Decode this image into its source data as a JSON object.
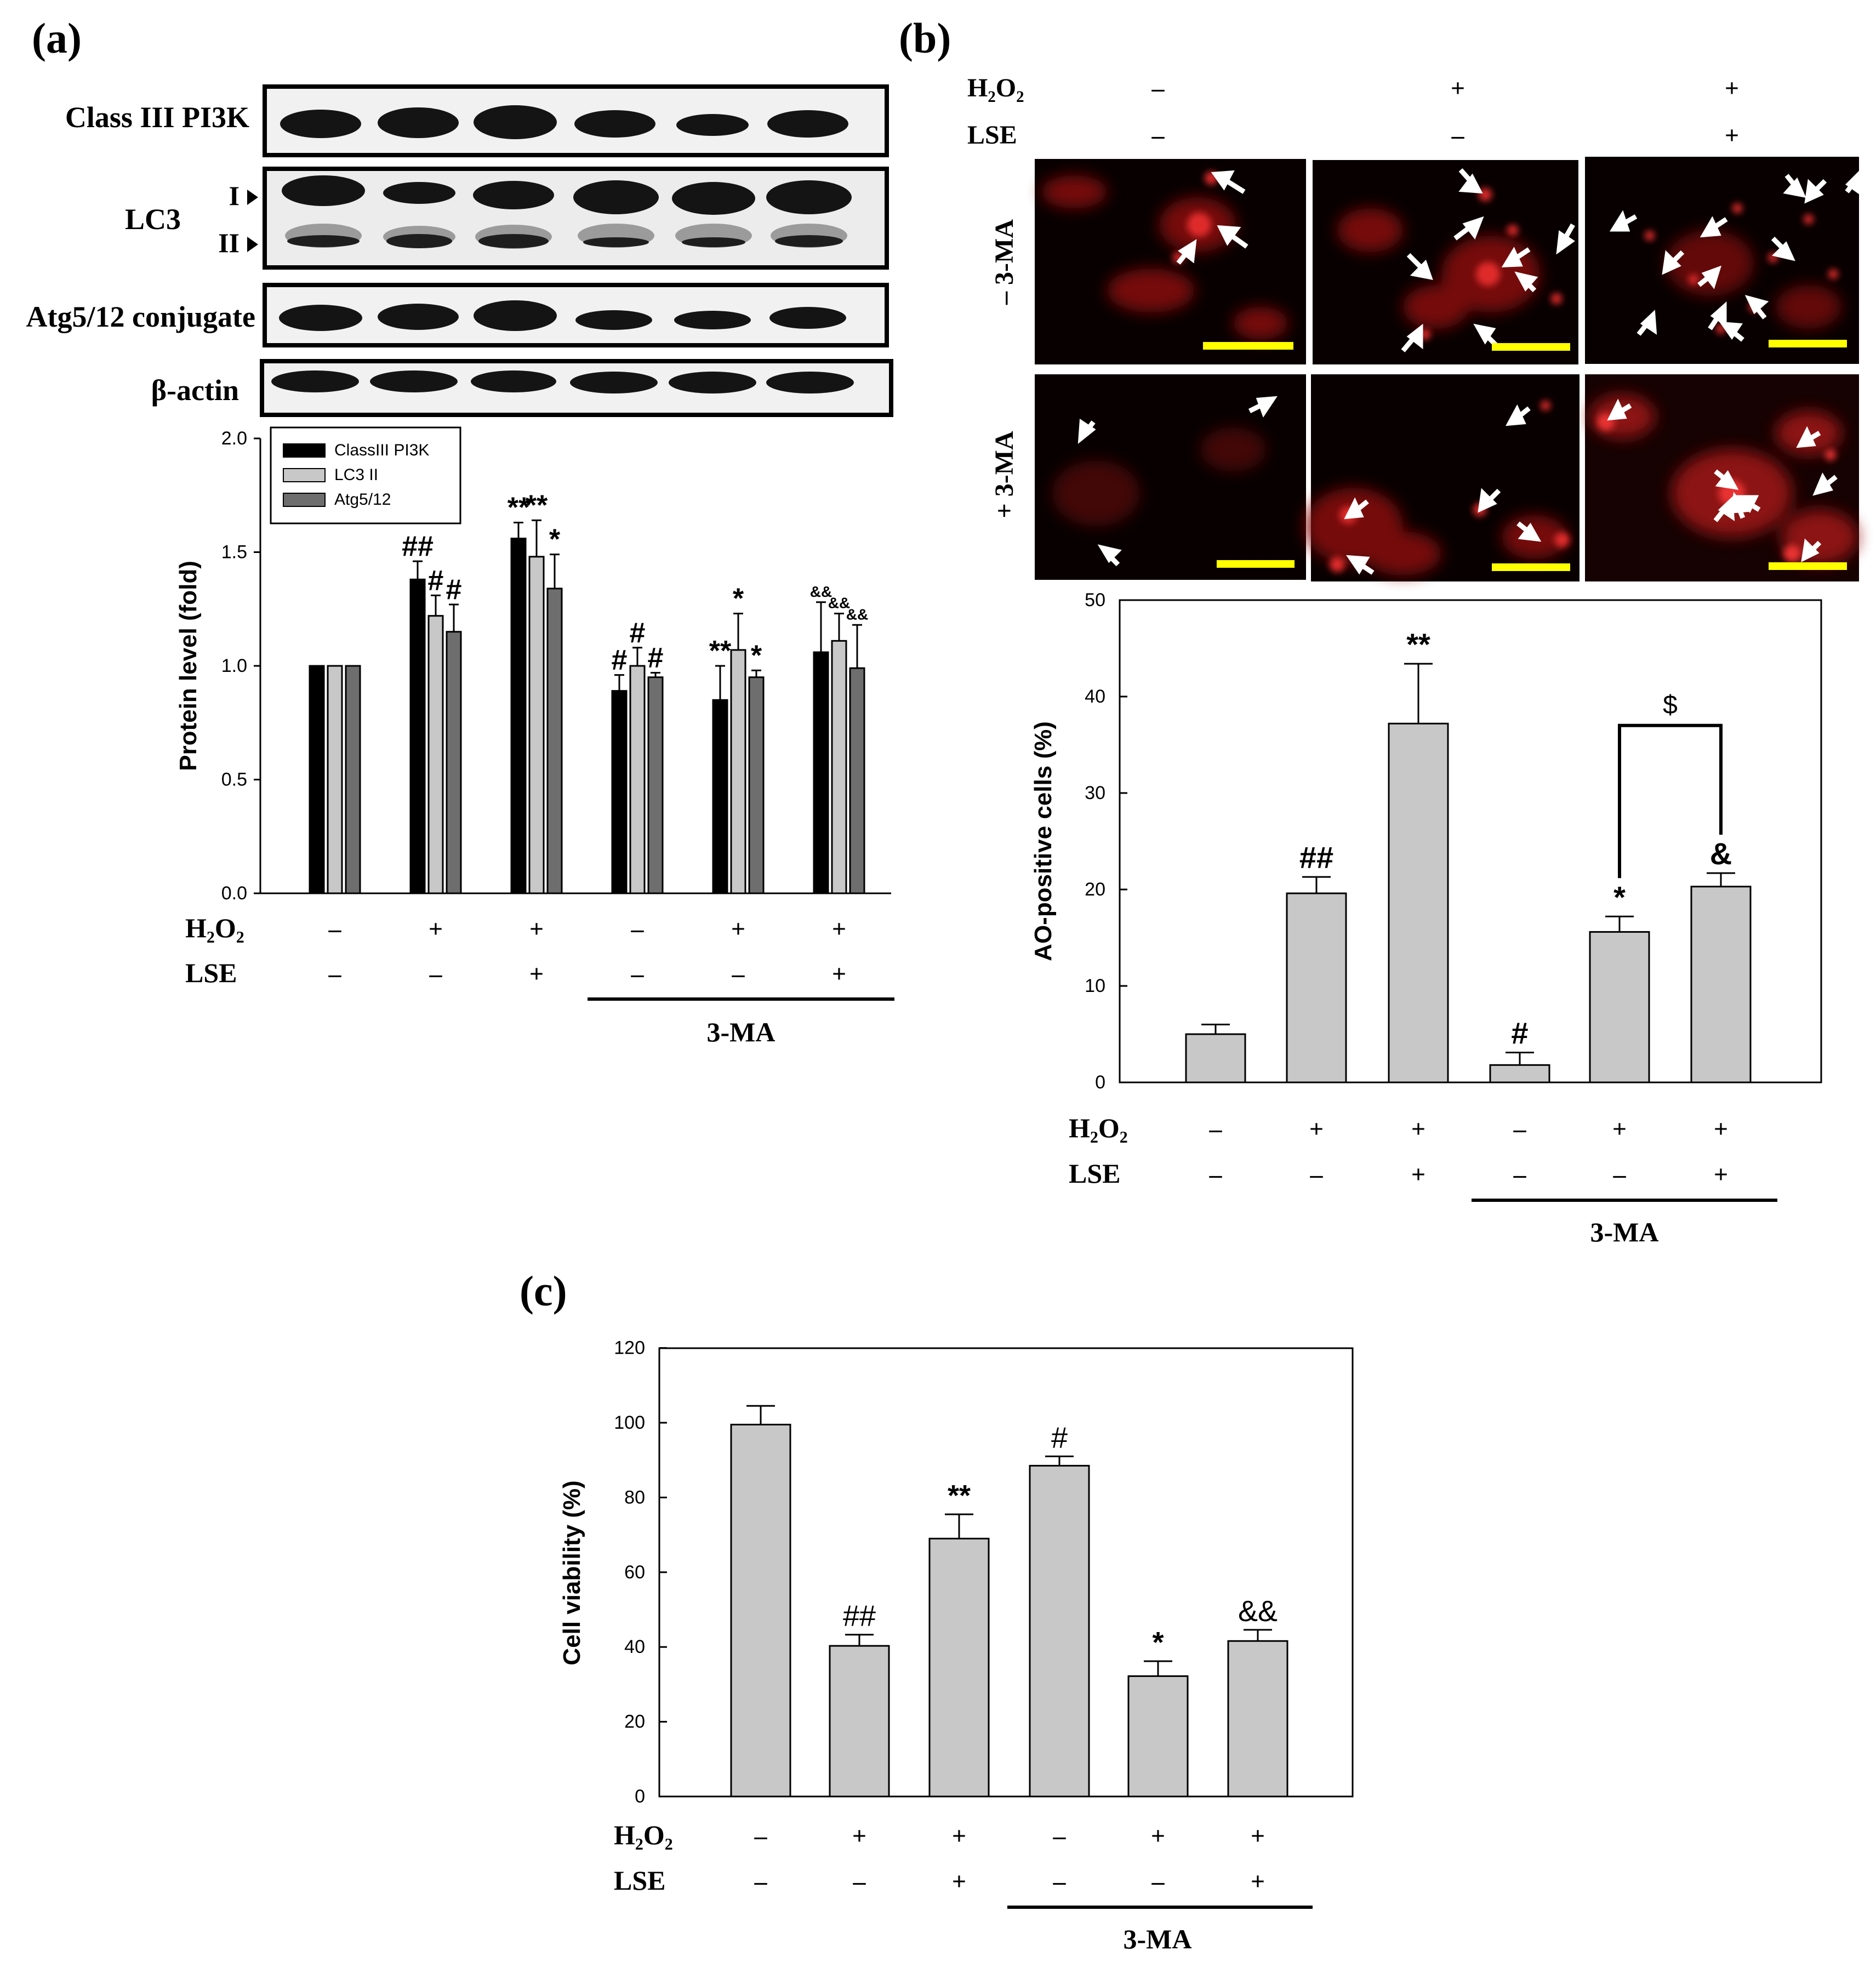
{
  "panels": {
    "a": {
      "label": "(a)",
      "blot_labels": [
        "Class III PI3K",
        "LC3",
        "Atg5/12 conjugate",
        "β-actin"
      ],
      "lc3_band_labels": [
        "I",
        "II"
      ],
      "treatment_rows": {
        "h2o2": {
          "label": "H₂O₂",
          "values": [
            "–",
            "+",
            "+",
            "–",
            "+",
            "+"
          ]
        },
        "lse": {
          "label": "LSE",
          "values": [
            "–",
            "–",
            "+",
            "–",
            "–",
            "+"
          ]
        }
      },
      "group_label": "3-MA"
    },
    "b": {
      "label": "(b)",
      "treatment_header": {
        "h2o2": {
          "label": "H₂O₂",
          "values": [
            "–",
            "+",
            "+"
          ]
        },
        "lse": {
          "label": "LSE",
          "values": [
            "–",
            "–",
            "+"
          ]
        }
      },
      "row_labels": [
        "– 3-MA",
        "+ 3-MA"
      ],
      "treatment_rows": {
        "h2o2": {
          "label": "H₂O₂",
          "values": [
            "–",
            "+",
            "+",
            "–",
            "+",
            "+"
          ]
        },
        "lse": {
          "label": "LSE",
          "values": [
            "–",
            "–",
            "+",
            "–",
            "–",
            "+"
          ]
        }
      },
      "group_label": "3-MA"
    },
    "c": {
      "label": "(c)",
      "treatment_rows": {
        "h2o2": {
          "label": "H₂O₂",
          "values": [
            "–",
            "+",
            "+",
            "–",
            "+",
            "+"
          ]
        },
        "lse": {
          "label": "LSE",
          "values": [
            "–",
            "–",
            "+",
            "–",
            "–",
            "+"
          ]
        }
      },
      "group_label": "3-MA"
    }
  },
  "colors": {
    "series_classIII": "#000000",
    "series_lc3ii": "#c8c8c8",
    "series_atg": "#6e6e6e",
    "single_bar": "#c8c8c8",
    "scale_bar": "#ffff00",
    "fluorescence": "#d01818"
  },
  "chart_data": [
    {
      "id": "a",
      "type": "bar",
      "ylabel": "Protein level (fold)",
      "ylim": [
        0,
        2.0
      ],
      "yticks": [
        0.0,
        0.5,
        1.0,
        1.5,
        2.0
      ],
      "ytick_labels": [
        "0.0",
        "0.5",
        "1.0",
        "1.5",
        "2.0"
      ],
      "legend_position": "top-left",
      "series": [
        {
          "name": "ClassIII PI3K",
          "values": [
            1.0,
            1.38,
            1.56,
            0.89,
            0.85,
            1.06
          ],
          "errors": [
            0,
            0.08,
            0.07,
            0.07,
            0.15,
            0.22
          ],
          "annotations": [
            "",
            "##",
            "**",
            "#",
            "**",
            "&&"
          ]
        },
        {
          "name": "LC3 II",
          "values": [
            1.0,
            1.22,
            1.48,
            1.0,
            1.07,
            1.11
          ],
          "errors": [
            0,
            0.09,
            0.16,
            0.08,
            0.16,
            0.12
          ],
          "annotations": [
            "",
            "#",
            "**",
            "#",
            "*",
            "&&"
          ]
        },
        {
          "name": "Atg5/12",
          "values": [
            1.0,
            1.15,
            1.34,
            0.95,
            0.95,
            0.99
          ],
          "errors": [
            0,
            0.12,
            0.15,
            0.02,
            0.03,
            0.19
          ],
          "annotations": [
            "",
            "#",
            "*",
            "#",
            "*",
            "&&"
          ]
        }
      ]
    },
    {
      "id": "b",
      "type": "bar",
      "ylabel": "AO-positive cells (%)",
      "ylim": [
        0,
        50
      ],
      "yticks": [
        0,
        10,
        20,
        30,
        40,
        50
      ],
      "ytick_labels": [
        "0",
        "10",
        "20",
        "30",
        "40",
        "50"
      ],
      "values": [
        5.0,
        19.6,
        37.2,
        1.8,
        15.6,
        20.3
      ],
      "errors": [
        1.0,
        1.7,
        6.2,
        1.3,
        1.6,
        1.4
      ],
      "annotations": [
        "",
        "##",
        "**",
        "#",
        "*",
        "&"
      ],
      "bracket": {
        "from": 4,
        "to": 5,
        "label": "$"
      }
    },
    {
      "id": "c",
      "type": "bar",
      "ylabel": "Cell viability (%)",
      "ylim": [
        0,
        120
      ],
      "yticks": [
        0,
        20,
        40,
        60,
        80,
        100,
        120
      ],
      "ytick_labels": [
        "0",
        "20",
        "40",
        "60",
        "80",
        "100",
        "120"
      ],
      "values": [
        99.5,
        40.3,
        69.0,
        88.5,
        32.2,
        41.6
      ],
      "errors": [
        5.0,
        3.0,
        6.5,
        2.5,
        4.0,
        3.0
      ],
      "annotations": [
        "",
        "##",
        "**",
        "#",
        "*",
        "&&"
      ]
    }
  ]
}
